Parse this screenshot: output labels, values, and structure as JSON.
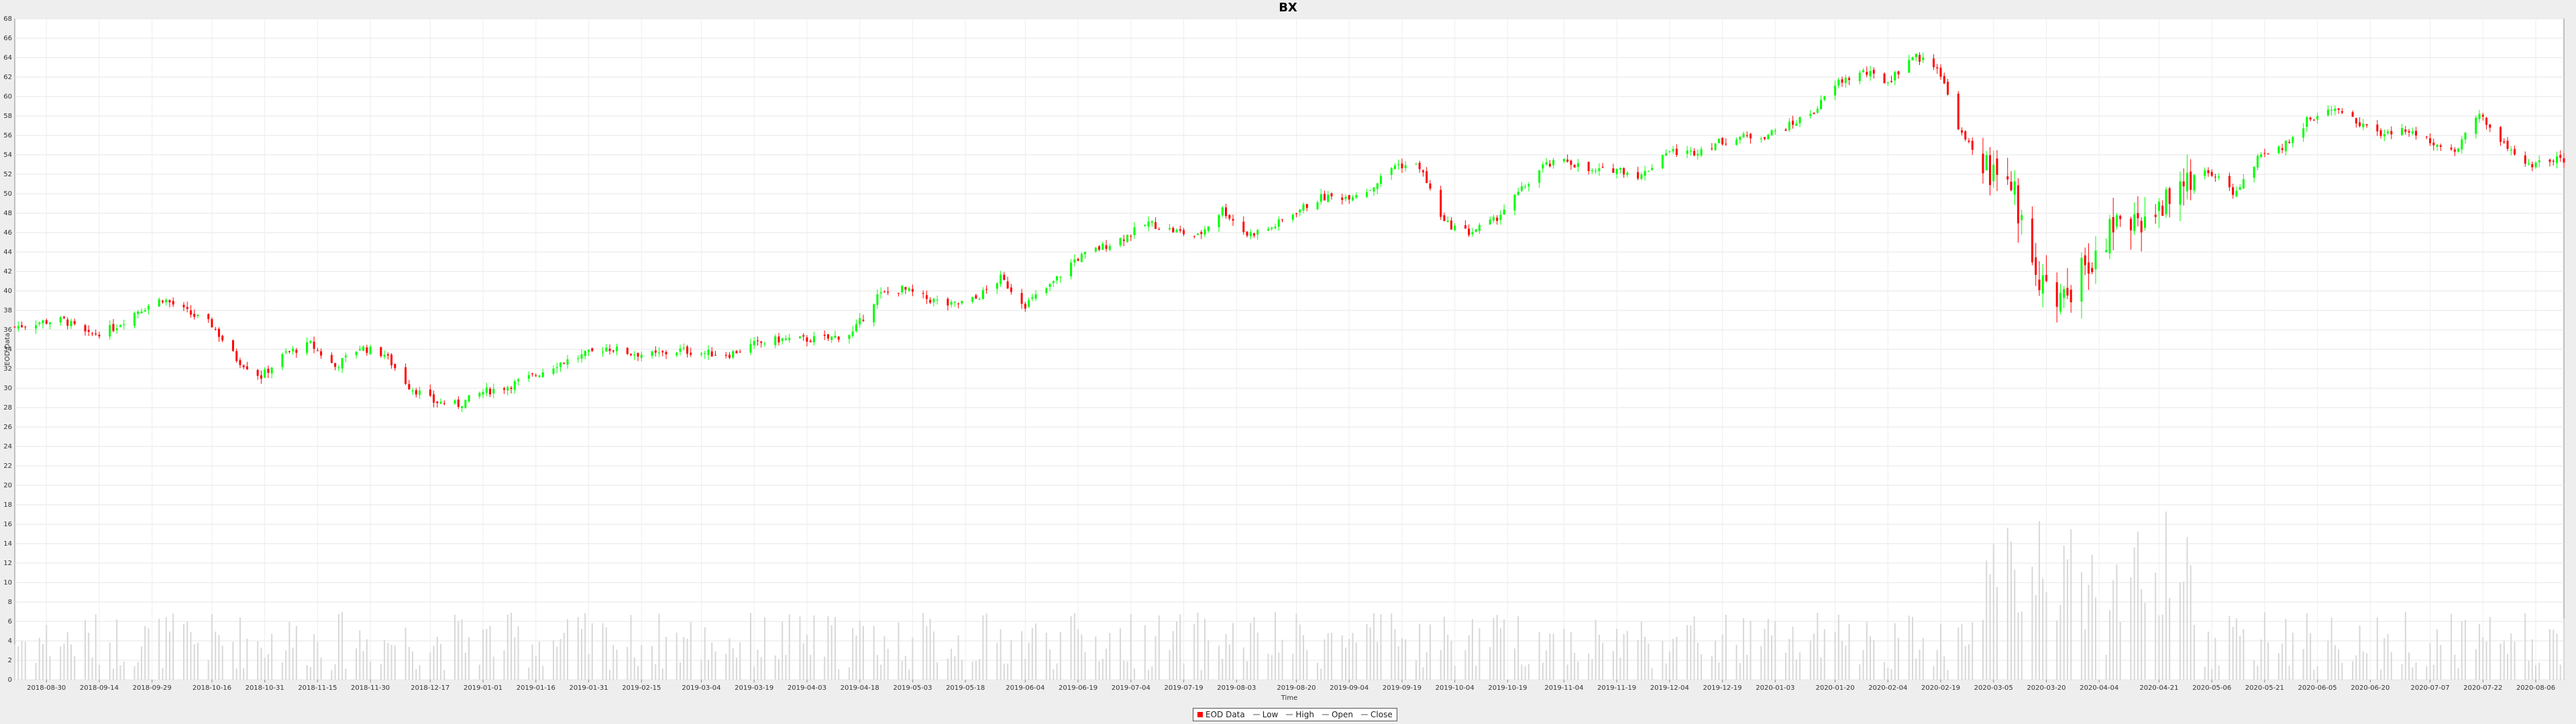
{
  "chart_data": {
    "type": "candlestick",
    "title": "BX",
    "xlabel": "Time",
    "ylabel": "EOD Data",
    "ylim": [
      0,
      68
    ],
    "yticks": [
      0,
      2,
      4,
      6,
      8,
      10,
      12,
      14,
      16,
      18,
      20,
      22,
      24,
      26,
      28,
      30,
      32,
      34,
      36,
      38,
      40,
      42,
      44,
      46,
      48,
      50,
      52,
      54,
      56,
      58,
      60,
      62,
      64,
      66,
      68
    ],
    "x_ticks": [
      "2018-08-30",
      "2018-09-14",
      "2018-09-29",
      "2018-10-16",
      "2018-10-31",
      "2018-11-15",
      "2018-11-30",
      "2018-12-17",
      "2019-01-01",
      "2019-01-16",
      "2019-01-31",
      "2019-02-15",
      "2019-03-04",
      "2019-03-19",
      "2019-04-03",
      "2019-04-18",
      "2019-05-03",
      "2019-05-18",
      "2019-06-04",
      "2019-06-19",
      "2019-07-04",
      "2019-07-19",
      "2019-08-03",
      "2019-08-20",
      "2019-09-04",
      "2019-09-19",
      "2019-10-04",
      "2019-10-19",
      "2019-11-04",
      "2019-11-19",
      "2019-12-04",
      "2019-12-19",
      "2020-01-03",
      "2020-01-20",
      "2020-02-04",
      "2020-02-19",
      "2020-03-05",
      "2020-03-20",
      "2020-04-04",
      "2020-04-21",
      "2020-05-06",
      "2020-05-21",
      "2020-06-05",
      "2020-06-20",
      "2020-07-07",
      "2020-07-22",
      "2020-08-06"
    ],
    "x_range": [
      "2018-08-21",
      "2020-08-14"
    ],
    "grid": true,
    "up_color": "#00ff00",
    "down_color": "#ff0000",
    "volume_color": "#d8d8d8",
    "legend": [
      {
        "label": "EOD Data",
        "color": "#ff0000",
        "kind": "box"
      },
      {
        "label": "Low",
        "color": "#aaaaaa",
        "kind": "line"
      },
      {
        "label": "High",
        "color": "#aaaaaa",
        "kind": "line"
      },
      {
        "label": "Open",
        "color": "#aaaaaa",
        "kind": "line"
      },
      {
        "label": "Close",
        "color": "#aaaaaa",
        "kind": "line"
      }
    ],
    "legend_position": "bottom-center",
    "close_series": [
      [
        "2018-08-21",
        36.3
      ],
      [
        "2018-08-28",
        36.8
      ],
      [
        "2018-09-04",
        37.0
      ],
      [
        "2018-09-11",
        35.4
      ],
      [
        "2018-09-18",
        36.2
      ],
      [
        "2018-09-25",
        38.0
      ],
      [
        "2018-10-02",
        39.2
      ],
      [
        "2018-10-09",
        37.8
      ],
      [
        "2018-10-16",
        36.5
      ],
      [
        "2018-10-23",
        33.0
      ],
      [
        "2018-10-30",
        31.2
      ],
      [
        "2018-11-06",
        33.6
      ],
      [
        "2018-11-13",
        34.5
      ],
      [
        "2018-11-20",
        32.2
      ],
      [
        "2018-11-27",
        34.2
      ],
      [
        "2018-12-04",
        33.5
      ],
      [
        "2018-12-11",
        30.2
      ],
      [
        "2018-12-18",
        28.6
      ],
      [
        "2018-12-25",
        28.3
      ],
      [
        "2019-01-01",
        29.6
      ],
      [
        "2019-01-08",
        30.2
      ],
      [
        "2019-01-15",
        31.2
      ],
      [
        "2019-01-22",
        32.5
      ],
      [
        "2019-01-29",
        33.3
      ],
      [
        "2019-02-05",
        34.2
      ],
      [
        "2019-02-12",
        33.6
      ],
      [
        "2019-02-19",
        33.4
      ],
      [
        "2019-02-26",
        33.9
      ],
      [
        "2019-03-05",
        33.6
      ],
      [
        "2019-03-12",
        33.5
      ],
      [
        "2019-03-19",
        34.5
      ],
      [
        "2019-03-26",
        35.0
      ],
      [
        "2019-04-02",
        35.0
      ],
      [
        "2019-04-09",
        35.1
      ],
      [
        "2019-04-16",
        35.7
      ],
      [
        "2019-04-23",
        39.5
      ],
      [
        "2019-04-30",
        40.2
      ],
      [
        "2019-05-07",
        39.2
      ],
      [
        "2019-05-14",
        38.5
      ],
      [
        "2019-05-21",
        39.2
      ],
      [
        "2019-05-28",
        41.3
      ],
      [
        "2019-06-04",
        38.6
      ],
      [
        "2019-06-11",
        40.5
      ],
      [
        "2019-06-18",
        43.2
      ],
      [
        "2019-06-25",
        44.4
      ],
      [
        "2019-07-02",
        45.5
      ],
      [
        "2019-07-09",
        47.0
      ],
      [
        "2019-07-16",
        46.2
      ],
      [
        "2019-07-23",
        45.6
      ],
      [
        "2019-07-30",
        48.4
      ],
      [
        "2019-08-06",
        45.8
      ],
      [
        "2019-08-13",
        46.5
      ],
      [
        "2019-08-20",
        48.2
      ],
      [
        "2019-08-27",
        49.6
      ],
      [
        "2019-09-03",
        49.7
      ],
      [
        "2019-09-10",
        50.5
      ],
      [
        "2019-09-17",
        53.0
      ],
      [
        "2019-09-24",
        52.8
      ],
      [
        "2019-10-01",
        47.0
      ],
      [
        "2019-10-08",
        46.0
      ],
      [
        "2019-10-15",
        47.2
      ],
      [
        "2019-10-22",
        50.0
      ],
      [
        "2019-10-29",
        52.8
      ],
      [
        "2019-11-05",
        53.4
      ],
      [
        "2019-11-12",
        52.2
      ],
      [
        "2019-11-19",
        52.6
      ],
      [
        "2019-11-26",
        51.8
      ],
      [
        "2019-12-03",
        54.4
      ],
      [
        "2019-12-10",
        54.2
      ],
      [
        "2019-12-17",
        55.2
      ],
      [
        "2019-12-24",
        55.8
      ],
      [
        "2019-12-31",
        56.0
      ],
      [
        "2020-01-07",
        57.0
      ],
      [
        "2020-01-14",
        58.5
      ],
      [
        "2020-01-21",
        61.5
      ],
      [
        "2020-01-28",
        62.5
      ],
      [
        "2020-02-04",
        61.5
      ],
      [
        "2020-02-11",
        64.2
      ],
      [
        "2020-02-18",
        63.2
      ],
      [
        "2020-02-25",
        56.0
      ],
      [
        "2020-03-03",
        52.5
      ],
      [
        "2020-03-10",
        51.0
      ],
      [
        "2020-03-17",
        42.0
      ],
      [
        "2020-03-24",
        38.5
      ],
      [
        "2020-03-31",
        42.5
      ],
      [
        "2020-04-07",
        46.0
      ],
      [
        "2020-04-14",
        47.0
      ],
      [
        "2020-04-21",
        48.5
      ],
      [
        "2020-04-28",
        51.0
      ],
      [
        "2020-05-05",
        52.5
      ],
      [
        "2020-05-12",
        50.0
      ],
      [
        "2020-05-19",
        53.5
      ],
      [
        "2020-05-26",
        54.8
      ],
      [
        "2020-06-02",
        57.5
      ],
      [
        "2020-06-09",
        58.8
      ],
      [
        "2020-06-16",
        57.6
      ],
      [
        "2020-06-23",
        56.0
      ],
      [
        "2020-06-30",
        56.5
      ],
      [
        "2020-07-07",
        55.5
      ],
      [
        "2020-07-14",
        54.5
      ],
      [
        "2020-07-21",
        58.2
      ],
      [
        "2020-07-28",
        55.0
      ],
      [
        "2020-08-04",
        52.8
      ],
      [
        "2020-08-11",
        53.5
      ]
    ]
  }
}
